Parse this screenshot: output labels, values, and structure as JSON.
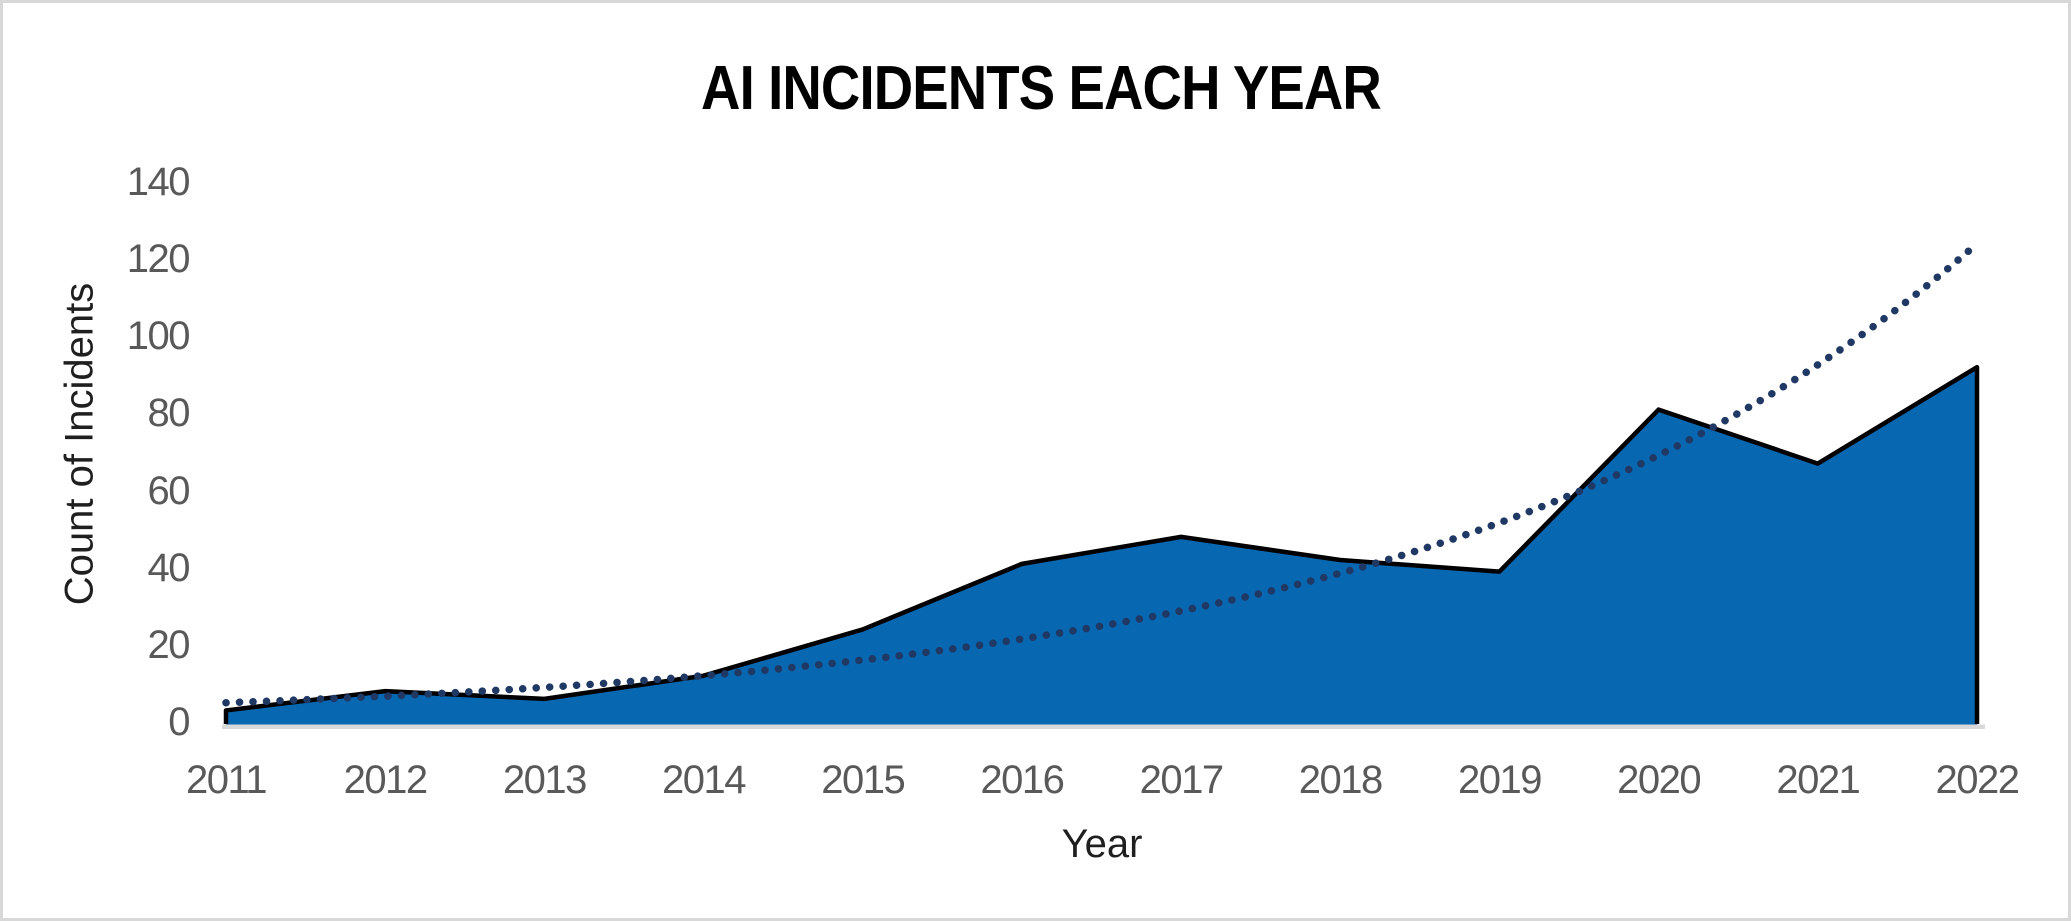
{
  "chart_data": {
    "type": "area",
    "title": "AI INCIDENTS EACH YEAR",
    "xlabel": "Year",
    "ylabel": "Count of Incidents",
    "categories": [
      "2011",
      "2012",
      "2013",
      "2014",
      "2015",
      "2016",
      "2017",
      "2018",
      "2019",
      "2020",
      "2021",
      "2022"
    ],
    "series": [
      {
        "name": "Count of Incidents",
        "values": [
          3,
          8,
          6,
          12,
          24,
          41,
          48,
          42,
          39,
          81,
          67,
          92
        ]
      }
    ],
    "trendline": {
      "type": "exponential",
      "style": "dotted",
      "values": [
        5,
        6.7,
        9,
        12,
        16.1,
        21.5,
        28.8,
        38.6,
        51.7,
        69.2,
        92.6,
        124
      ]
    },
    "yticks": [
      0,
      20,
      40,
      60,
      80,
      100,
      120,
      140
    ],
    "ylim": [
      0,
      140
    ],
    "ytick_interval": 20,
    "grid": false,
    "legend": "none",
    "colors": {
      "area_fill": "#0767B1",
      "area_outline": "#000000",
      "trendline": "#1F3864",
      "axis_line": "#D9D9D9",
      "tick_label": "#595959",
      "axis_title": "#1F1F1F",
      "title": "#000000",
      "border": "#D8D8D8",
      "background": "#FFFFFF"
    }
  }
}
